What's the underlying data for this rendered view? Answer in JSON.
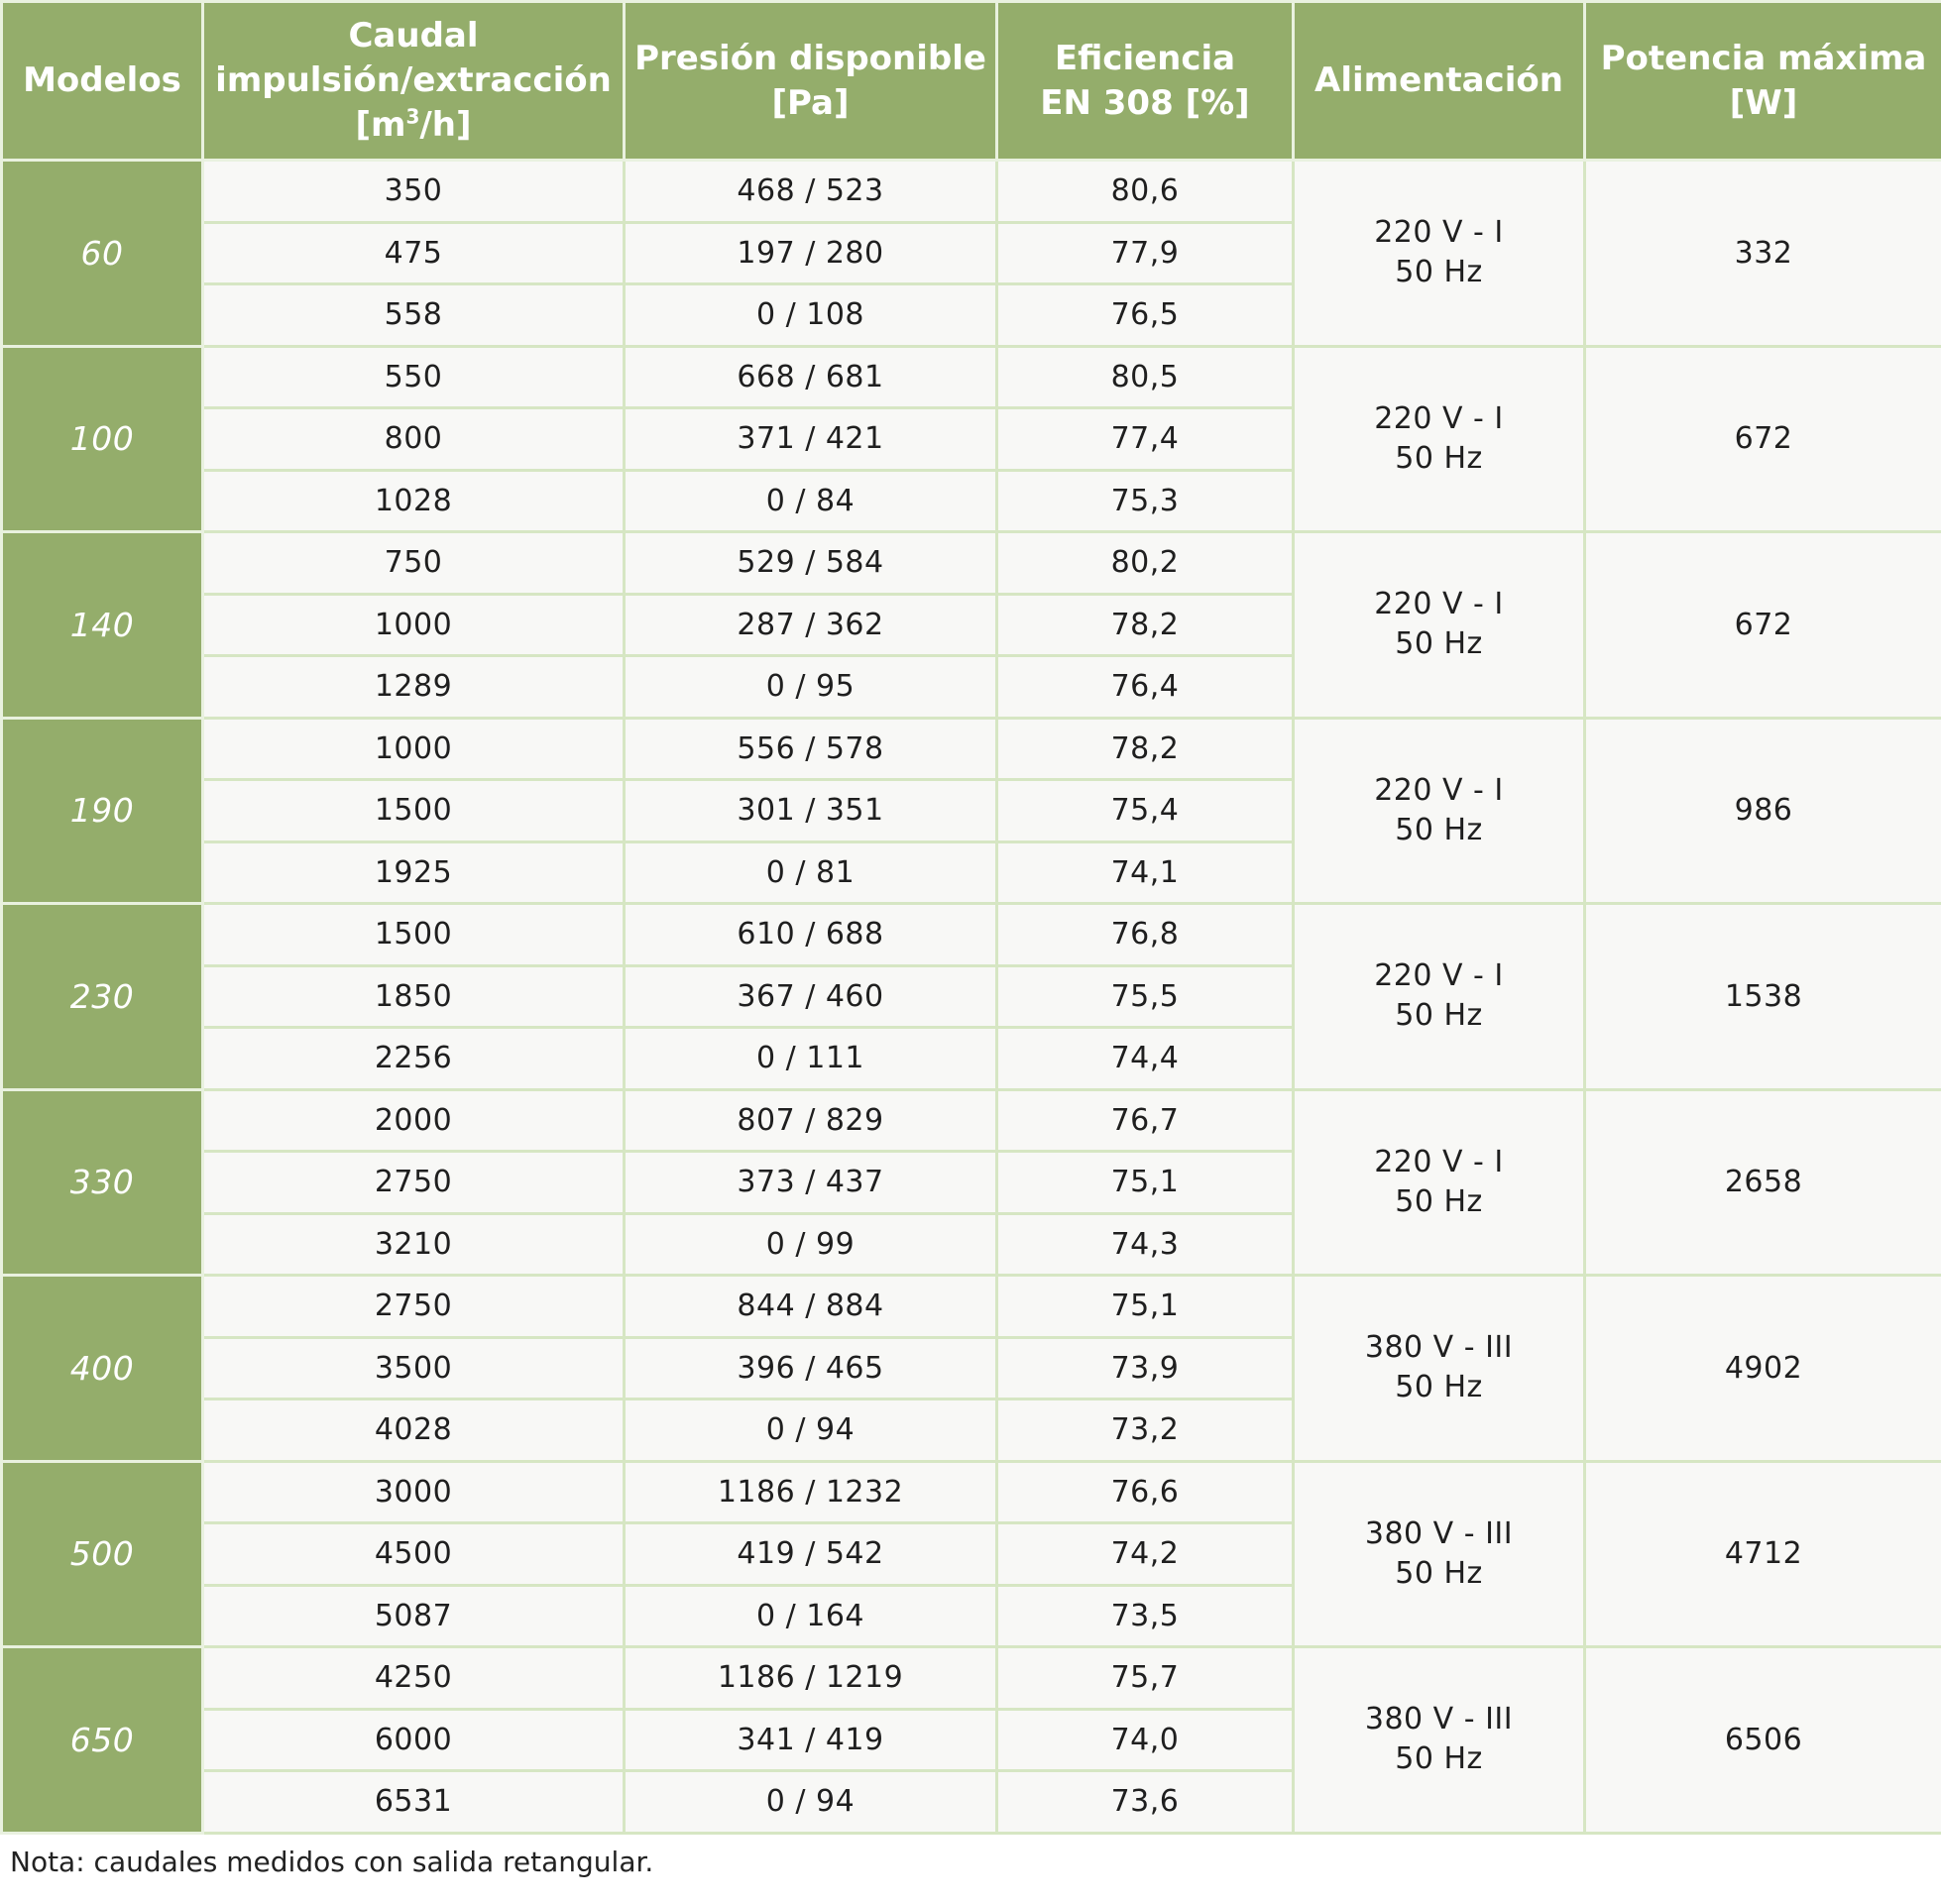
{
  "headers": {
    "models": "Modelos",
    "flow_l1": "Caudal",
    "flow_l2": "impulsión/extracción",
    "flow_l3a": "[m",
    "flow_l3sup": "3",
    "flow_l3b": "/h]",
    "pressure_l1": "Presión disponible",
    "pressure_l2": "[Pa]",
    "efficiency_l1": "Eficiencia",
    "efficiency_l2": "EN 308 [%]",
    "supply": "Alimentación",
    "power_l1": "Potencia máxima",
    "power_l2": "[W]"
  },
  "groups": [
    {
      "model": "60",
      "supply_l1": "220 V - I",
      "supply_l2": "50 Hz",
      "power": "332",
      "rows": [
        {
          "flow": "350",
          "pressure": "468 / 523",
          "eff": "80,6"
        },
        {
          "flow": "475",
          "pressure": "197 / 280",
          "eff": "77,9"
        },
        {
          "flow": "558",
          "pressure": "0 / 108",
          "eff": "76,5"
        }
      ]
    },
    {
      "model": "100",
      "supply_l1": "220 V - I",
      "supply_l2": "50 Hz",
      "power": "672",
      "rows": [
        {
          "flow": "550",
          "pressure": "668 / 681",
          "eff": "80,5"
        },
        {
          "flow": "800",
          "pressure": "371 / 421",
          "eff": "77,4"
        },
        {
          "flow": "1028",
          "pressure": "0 / 84",
          "eff": "75,3"
        }
      ]
    },
    {
      "model": "140",
      "supply_l1": "220 V - I",
      "supply_l2": "50 Hz",
      "power": "672",
      "rows": [
        {
          "flow": "750",
          "pressure": "529 / 584",
          "eff": "80,2"
        },
        {
          "flow": "1000",
          "pressure": "287 / 362",
          "eff": "78,2"
        },
        {
          "flow": "1289",
          "pressure": "0 / 95",
          "eff": "76,4"
        }
      ]
    },
    {
      "model": "190",
      "supply_l1": "220 V - I",
      "supply_l2": "50 Hz",
      "power": "986",
      "rows": [
        {
          "flow": "1000",
          "pressure": "556 / 578",
          "eff": "78,2"
        },
        {
          "flow": "1500",
          "pressure": "301 / 351",
          "eff": "75,4"
        },
        {
          "flow": "1925",
          "pressure": "0 / 81",
          "eff": "74,1"
        }
      ]
    },
    {
      "model": "230",
      "supply_l1": "220 V - I",
      "supply_l2": "50 Hz",
      "power": "1538",
      "rows": [
        {
          "flow": "1500",
          "pressure": "610 / 688",
          "eff": "76,8"
        },
        {
          "flow": "1850",
          "pressure": "367 / 460",
          "eff": "75,5"
        },
        {
          "flow": "2256",
          "pressure": "0 / 111",
          "eff": "74,4"
        }
      ]
    },
    {
      "model": "330",
      "supply_l1": "220 V - I",
      "supply_l2": "50 Hz",
      "power": "2658",
      "rows": [
        {
          "flow": "2000",
          "pressure": "807 / 829",
          "eff": "76,7"
        },
        {
          "flow": "2750",
          "pressure": "373 / 437",
          "eff": "75,1"
        },
        {
          "flow": "3210",
          "pressure": "0 / 99",
          "eff": "74,3"
        }
      ]
    },
    {
      "model": "400",
      "supply_l1": "380 V - III",
      "supply_l2": "50 Hz",
      "power": "4902",
      "rows": [
        {
          "flow": "2750",
          "pressure": "844 / 884",
          "eff": "75,1"
        },
        {
          "flow": "3500",
          "pressure": "396 / 465",
          "eff": "73,9"
        },
        {
          "flow": "4028",
          "pressure": "0 / 94",
          "eff": "73,2"
        }
      ]
    },
    {
      "model": "500",
      "supply_l1": "380 V - III",
      "supply_l2": "50 Hz",
      "power": "4712",
      "rows": [
        {
          "flow": "3000",
          "pressure": "1186 / 1232",
          "eff": "76,6"
        },
        {
          "flow": "4500",
          "pressure": "419 / 542",
          "eff": "74,2"
        },
        {
          "flow": "5087",
          "pressure": "0 / 164",
          "eff": "73,5"
        }
      ]
    },
    {
      "model": "650",
      "supply_l1": "380 V - III",
      "supply_l2": "50 Hz",
      "power": "6506",
      "rows": [
        {
          "flow": "4250",
          "pressure": "1186 / 1219",
          "eff": "75,7"
        },
        {
          "flow": "6000",
          "pressure": "341 / 419",
          "eff": "74,0"
        },
        {
          "flow": "6531",
          "pressure": "0 / 94",
          "eff": "73,6"
        }
      ]
    }
  ],
  "note": "Nota: caudales medidos con salida retangular."
}
